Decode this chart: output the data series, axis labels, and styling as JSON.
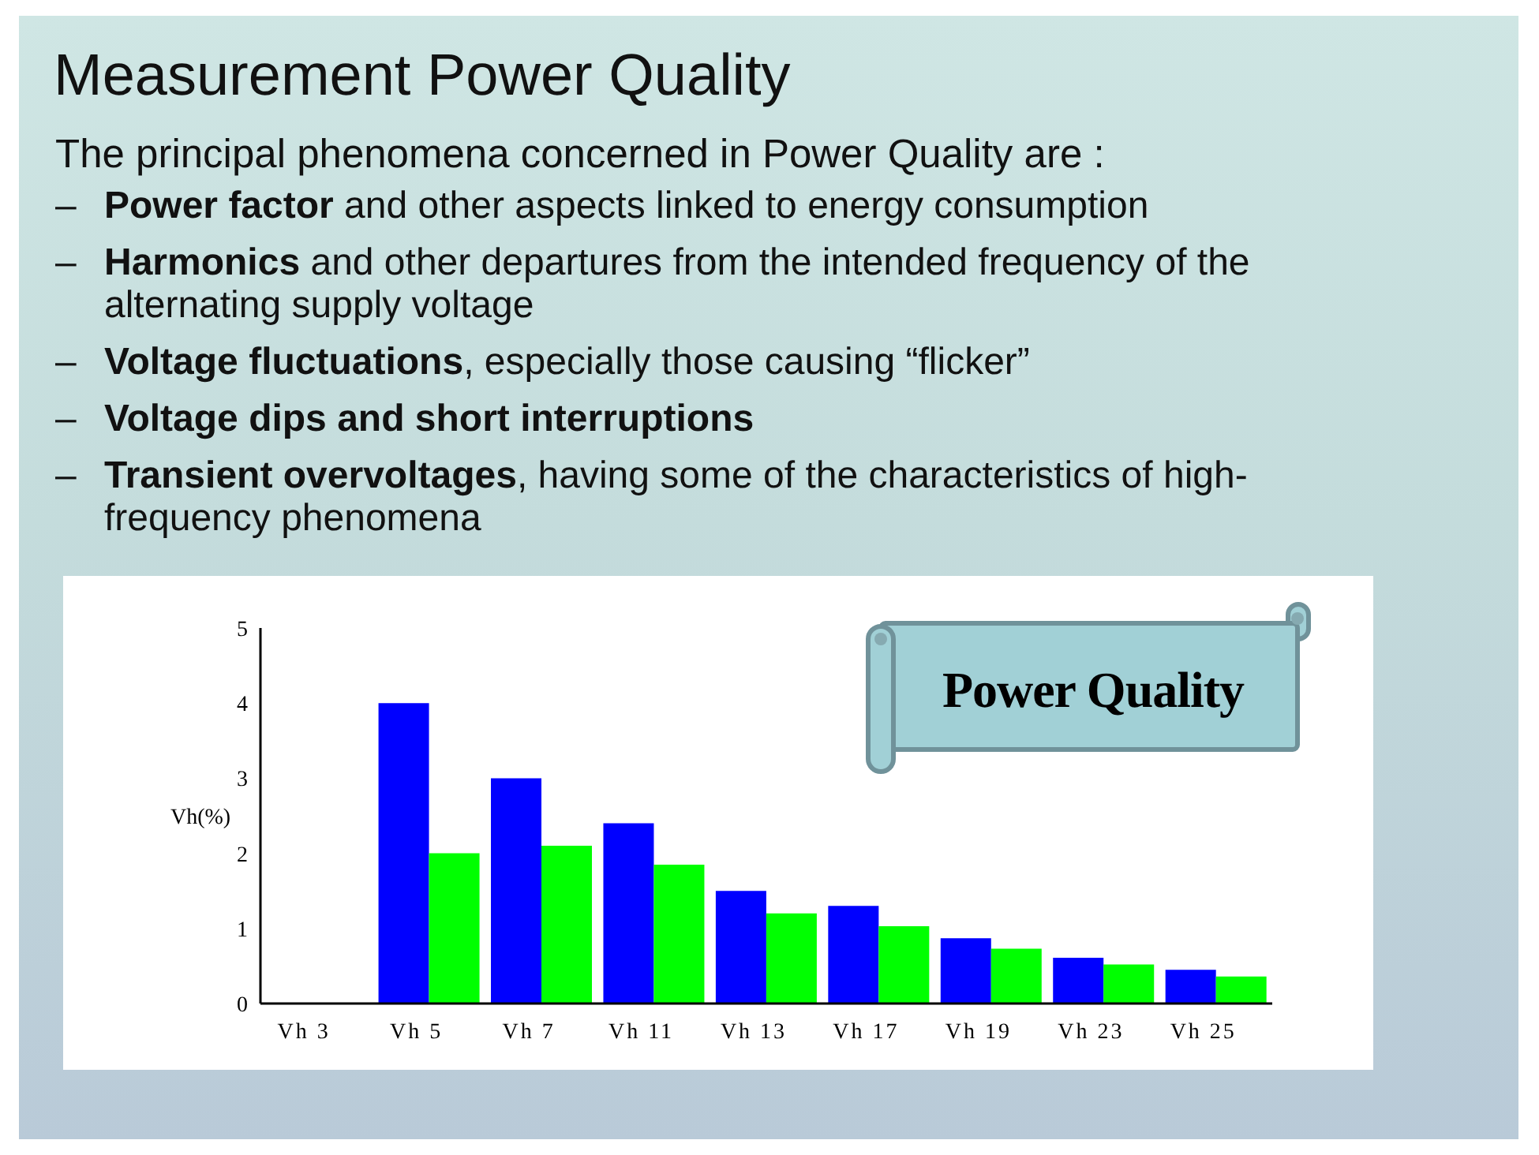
{
  "chart_data": {
    "type": "bar",
    "title": "Measurement Power Quality",
    "subtitle": "The principal phenomena concerned in Power Quality are :",
    "annotations": [
      "– Power factor and other aspects linked to energy consumption",
      "– Harmonics and other departures from the intended frequency of the alternating supply voltage",
      "– Voltage fluctuations, especially those causing “flicker”",
      "– Voltage dips and short interruptions",
      "– Transient overvoltages, having some of the characteristics of high-frequency phenomena",
      "Power Quality"
    ],
    "ylabel": "Vh(%)",
    "categories": [
      "Vh 3",
      "Vh 5",
      "Vh 7",
      "Vh 11",
      "Vh 13",
      "Vh 17",
      "Vh 19",
      "Vh 23",
      "Vh 25"
    ],
    "series": [
      {
        "color": "#0000ff",
        "values": [
          null,
          4.0,
          3.0,
          2.4,
          1.5,
          1.3,
          0.87,
          0.61,
          0.45
        ]
      },
      {
        "color": "#00ff00",
        "values": [
          null,
          2.0,
          2.1,
          1.85,
          1.2,
          1.03,
          0.73,
          0.52,
          0.36
        ]
      }
    ],
    "ylim": [
      0,
      5
    ],
    "yticks": [
      0,
      1,
      2,
      3,
      4,
      5
    ]
  }
}
